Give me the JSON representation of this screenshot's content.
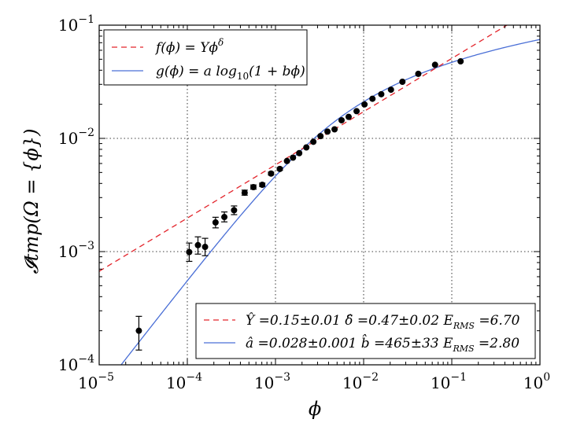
{
  "chart_data": {
    "type": "scatter",
    "title": "",
    "xlabel": "ϕ",
    "ylabel": "𝓘tmp(Ω = {ϕ})",
    "xscale": "log",
    "yscale": "log",
    "xlim": [
      1e-05,
      1
    ],
    "ylim": [
      0.0001,
      0.1
    ],
    "grid": true,
    "x_ticks": [
      {
        "value": 1e-05,
        "base": "10",
        "exp": "−5"
      },
      {
        "value": 0.0001,
        "base": "10",
        "exp": "−4"
      },
      {
        "value": 0.001,
        "base": "10",
        "exp": "−3"
      },
      {
        "value": 0.01,
        "base": "10",
        "exp": "−2"
      },
      {
        "value": 0.1,
        "base": "10",
        "exp": "−1"
      },
      {
        "value": 1,
        "base": "10",
        "exp": "0"
      }
    ],
    "y_ticks": [
      {
        "value": 0.0001,
        "base": "10",
        "exp": "−4"
      },
      {
        "value": 0.001,
        "base": "10",
        "exp": "−3"
      },
      {
        "value": 0.01,
        "base": "10",
        "exp": "−2"
      },
      {
        "value": 0.1,
        "base": "10",
        "exp": "−1"
      }
    ],
    "series": [
      {
        "name": "data",
        "kind": "errorbar",
        "points": [
          {
            "x": 2.82e-05,
            "y": 0.0002,
            "ylo": 0.000135,
            "yhi": 0.000268
          },
          {
            "x": 0.000105,
            "y": 0.00099,
            "ylo": 0.00082,
            "yhi": 0.00119
          },
          {
            "x": 0.000132,
            "y": 0.00114,
            "ylo": 0.00095,
            "yhi": 0.00135
          },
          {
            "x": 0.000159,
            "y": 0.0011,
            "ylo": 0.00092,
            "yhi": 0.00131
          },
          {
            "x": 0.000209,
            "y": 0.00181,
            "ylo": 0.00162,
            "yhi": 0.00201
          },
          {
            "x": 0.000263,
            "y": 0.00202,
            "ylo": 0.00183,
            "yhi": 0.00224
          },
          {
            "x": 0.000339,
            "y": 0.00232,
            "ylo": 0.00212,
            "yhi": 0.00253
          },
          {
            "x": 0.000447,
            "y": 0.00331,
            "ylo": 0.00315,
            "yhi": 0.00349
          },
          {
            "x": 0.000562,
            "y": 0.00371,
            "ylo": 0.00356,
            "yhi": 0.00388
          },
          {
            "x": 0.000708,
            "y": 0.00389,
            "ylo": 0.00376,
            "yhi": 0.00403
          },
          {
            "x": 0.000891,
            "y": 0.00489,
            "ylo": 0.00475,
            "yhi": 0.00503
          },
          {
            "x": 0.00112,
            "y": 0.00537,
            "ylo": 0.00523,
            "yhi": 0.00552
          },
          {
            "x": 0.00135,
            "y": 0.00631,
            "ylo": 0.00617,
            "yhi": 0.00645
          },
          {
            "x": 0.00158,
            "y": 0.00676,
            "ylo": 0.00662,
            "yhi": 0.0069
          },
          {
            "x": 0.00186,
            "y": 0.00741,
            "ylo": 0.00727,
            "yhi": 0.00755
          },
          {
            "x": 0.00224,
            "y": 0.00832,
            "ylo": 0.00818,
            "yhi": 0.00846
          },
          {
            "x": 0.00269,
            "y": 0.00933,
            "ylo": 0.00919,
            "yhi": 0.00947
          },
          {
            "x": 0.00324,
            "y": 0.01047,
            "ylo": 0.01033,
            "yhi": 0.01061
          },
          {
            "x": 0.00389,
            "y": 0.01148,
            "ylo": 0.01134,
            "yhi": 0.01162
          },
          {
            "x": 0.00468,
            "y": 0.01202,
            "ylo": 0.01188,
            "yhi": 0.01216
          },
          {
            "x": 0.00562,
            "y": 0.01445,
            "ylo": 0.01431,
            "yhi": 0.01459
          },
          {
            "x": 0.00676,
            "y": 0.01549,
            "ylo": 0.01535,
            "yhi": 0.01563
          },
          {
            "x": 0.00832,
            "y": 0.01738,
            "ylo": 0.01724,
            "yhi": 0.01752
          },
          {
            "x": 0.01023,
            "y": 0.01995,
            "ylo": 0.01981,
            "yhi": 0.02009
          },
          {
            "x": 0.01259,
            "y": 0.02239,
            "ylo": 0.02225,
            "yhi": 0.02253
          },
          {
            "x": 0.01585,
            "y": 0.02455,
            "ylo": 0.02441,
            "yhi": 0.02469
          },
          {
            "x": 0.02042,
            "y": 0.02692,
            "ylo": 0.02678,
            "yhi": 0.02706
          },
          {
            "x": 0.02754,
            "y": 0.03162,
            "ylo": 0.03148,
            "yhi": 0.03176
          },
          {
            "x": 0.04169,
            "y": 0.03715,
            "ylo": 0.03701,
            "yhi": 0.03729
          },
          {
            "x": 0.06457,
            "y": 0.04467,
            "ylo": 0.04453,
            "yhi": 0.04481
          },
          {
            "x": 0.1259,
            "y": 0.0479,
            "ylo": 0.04776,
            "yhi": 0.04804
          }
        ]
      },
      {
        "name": "f(ϕ) = Yϕᵟ",
        "kind": "power",
        "color": "#e3242b",
        "params": {
          "Y": 0.15,
          "delta": 0.47
        }
      },
      {
        "name": "g(ϕ) = a log10(1 + bϕ)",
        "kind": "log",
        "color": "#4a6fd6",
        "params": {
          "a": 0.028,
          "b": 465
        }
      }
    ],
    "legend_top": {
      "placement": "top-left",
      "entries": [
        {
          "main": "f(ϕ) = Yϕ",
          "sup": "δ",
          "color": "#e3242b",
          "dash": true
        },
        {
          "main": "g(ϕ) = a log",
          "sub": "10",
          "rest": "(1 + bϕ)",
          "color": "#4a6fd6",
          "dash": false
        }
      ]
    },
    "legend_bottom": {
      "placement": "bottom-right",
      "entries": [
        {
          "text": "Ŷ =0.15±0.01 δ̂ =0.47±0.02 E",
          "sub": "RMS",
          "rest": " =6.70",
          "color": "#e3242b",
          "dash": true
        },
        {
          "text": "â =0.028±0.001 b̂ =465±33 E",
          "sub": "RMS",
          "rest": " =2.80",
          "color": "#4a6fd6",
          "dash": false
        }
      ]
    }
  }
}
